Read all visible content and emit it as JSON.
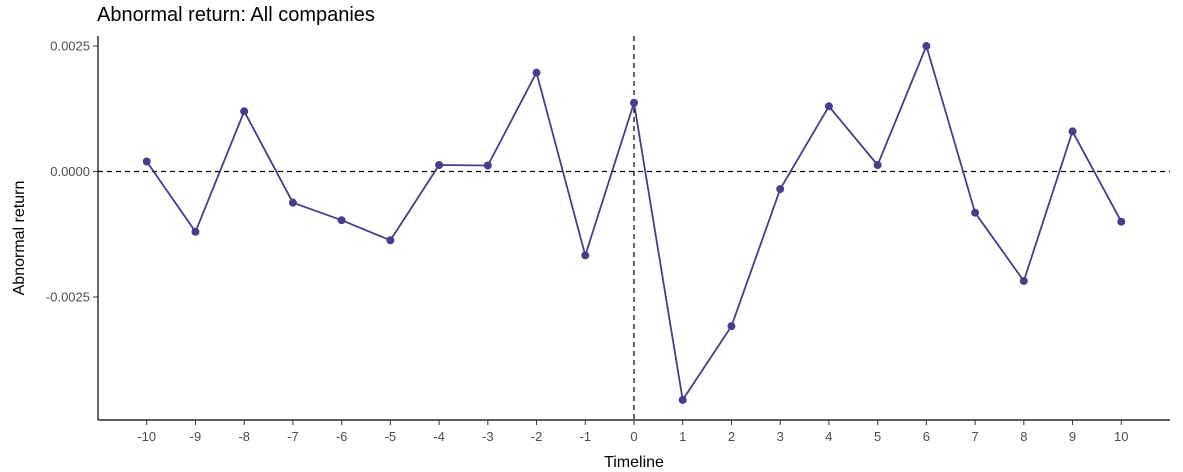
{
  "chart_data": {
    "type": "line",
    "title": "Abnormal return: All companies",
    "xlabel": "Timeline",
    "ylabel": "Abnormal return",
    "x": [
      -10,
      -9,
      -8,
      -7,
      -6,
      -5,
      -4,
      -3,
      -2,
      -1,
      0,
      1,
      2,
      3,
      4,
      5,
      6,
      7,
      8,
      9,
      10
    ],
    "series": [
      {
        "values": [
          0.0002,
          -0.0012,
          0.0012,
          -0.00062,
          -0.00097,
          -0.00137,
          0.00013,
          0.00012,
          0.00197,
          -0.00167,
          0.00137,
          -0.00455,
          -0.00308,
          -0.00035,
          0.0013,
          0.00013,
          0.0025,
          -0.00082,
          -0.00218,
          0.0008,
          -0.001
        ]
      }
    ],
    "xticks": [
      "-10",
      "-9",
      "-8",
      "-7",
      "-6",
      "-5",
      "-4",
      "-3",
      "-2",
      "-1",
      "0",
      "1",
      "2",
      "3",
      "4",
      "5",
      "6",
      "7",
      "8",
      "9",
      "10"
    ],
    "yticks": [
      "0.0025",
      "0.0000",
      "-0.0025"
    ],
    "ytick_values": [
      0.0025,
      0.0,
      -0.0025
    ],
    "xlim": [
      -11,
      11
    ],
    "ylim": [
      -0.00495,
      0.0027
    ],
    "reference_lines": {
      "horizontal": 0,
      "vertical": 0
    },
    "grid": false,
    "colors": {
      "series": "#483d8b",
      "axes": "#000000",
      "tick_text": "#4d4d4d"
    }
  }
}
